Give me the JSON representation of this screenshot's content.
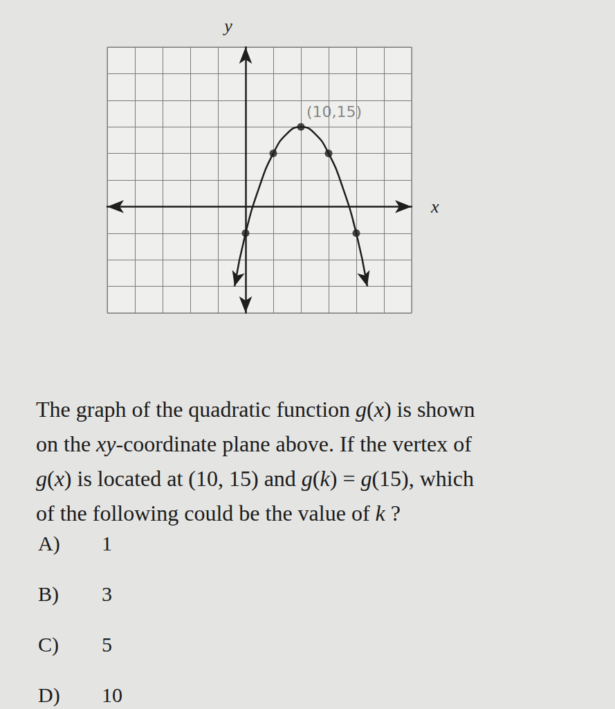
{
  "chart_data": {
    "type": "line",
    "x": [
      -2,
      0,
      2.5,
      5,
      7.5,
      10,
      12.5,
      15,
      17.5,
      20,
      22
    ],
    "values": [
      -15,
      -5,
      3.75,
      10,
      13.75,
      15,
      13.75,
      10,
      3.75,
      -5,
      -15
    ],
    "marked_points": {
      "x": [
        0,
        5,
        10,
        15,
        20
      ],
      "values": [
        -5,
        10,
        15,
        10,
        -5
      ]
    },
    "color": "#1e1e1e",
    "xlabel": "x",
    "ylabel": "y",
    "xlim": [
      -25,
      30
    ],
    "ylim": [
      -20,
      30
    ],
    "xticks": [
      -25,
      -20,
      -15,
      -10,
      -5,
      0,
      5,
      10,
      15,
      20,
      25,
      30
    ],
    "yticks": [
      -20,
      -15,
      -10,
      -5,
      0,
      5,
      10,
      15,
      20,
      25,
      30
    ],
    "grid": true,
    "tick_labels": false,
    "annotations": [
      {
        "text": "(10,15)",
        "x": 10,
        "y": 15
      }
    ]
  },
  "question": {
    "lines": [
      "The graph of the quadratic function g(x) is shown",
      "on the xy-coordinate plane above.  If the vertex of",
      "g(x) is located at (10, 15) and g(k) = g(15), which",
      "of the following could be the value of k ?"
    ],
    "choices": [
      {
        "letter": "A)",
        "value": 1
      },
      {
        "letter": "B)",
        "value": 3
      },
      {
        "letter": "C)",
        "value": 5
      },
      {
        "letter": "D)",
        "value": 10
      }
    ]
  }
}
